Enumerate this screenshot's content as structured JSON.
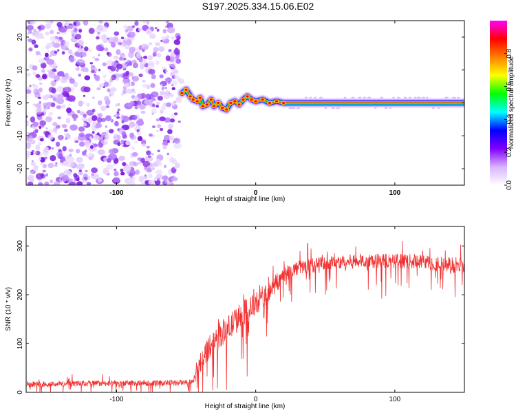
{
  "title": "S197.2025.334.15.06.E02",
  "chart_data": [
    {
      "type": "heatmap",
      "name": "spectrogram",
      "xlabel": "Height of straight line (km)",
      "ylabel": "Frequency (Hz)",
      "xlim": [
        -165,
        150
      ],
      "ylim": [
        -25,
        25
      ],
      "xticks": [
        -100,
        0,
        100
      ],
      "yticks": [
        -20,
        -10,
        0,
        10,
        20
      ],
      "xtick_labels": [
        "-100",
        "0",
        "100"
      ],
      "ytick_labels": [
        "-20",
        "-10",
        "0",
        "10",
        "20"
      ],
      "noise_region_x": [
        -165,
        -55
      ],
      "signal_track": {
        "points": [
          [
            -53,
            3
          ],
          [
            -50,
            4
          ],
          [
            -47,
            2
          ],
          [
            -45,
            1
          ],
          [
            -42,
            0.5
          ],
          [
            -40,
            1.5
          ],
          [
            -38,
            -1
          ],
          [
            -35,
            -0.5
          ],
          [
            -32,
            1
          ],
          [
            -30,
            -1
          ],
          [
            -27,
            0
          ],
          [
            -24,
            -1.5
          ],
          [
            -21,
            -2
          ],
          [
            -18,
            0
          ],
          [
            -15,
            0.5
          ],
          [
            -12,
            -0.5
          ],
          [
            -9,
            1
          ],
          [
            -6,
            2
          ],
          [
            -3,
            1
          ],
          [
            0,
            0.5
          ],
          [
            5,
            1
          ],
          [
            10,
            0
          ],
          [
            15,
            0.5
          ],
          [
            20,
            0
          ],
          [
            25,
            0
          ],
          [
            150,
            0
          ]
        ],
        "steady_from_x": 25,
        "steady_frequency": 0
      },
      "colorbar": {
        "label": "Normalized spectral amplitude",
        "range": [
          0,
          1
        ],
        "ticks": [
          0,
          0.2,
          0.4,
          0.6,
          0.8
        ],
        "tick_labels": [
          "0.0",
          "0.2",
          "0.4",
          "0.6",
          "0.8"
        ],
        "colors": [
          "#ffffff",
          "#d9b3ff",
          "#8000ff",
          "#0000ff",
          "#00ffff",
          "#00ff00",
          "#ffff00",
          "#ff8000",
          "#ff0000",
          "#ff00ff"
        ]
      }
    },
    {
      "type": "line",
      "name": "snr",
      "xlabel": "Height of straight line (km)",
      "ylabel": "SNR (10 * v/v)",
      "xlim": [
        -165,
        150
      ],
      "ylim": [
        0,
        340
      ],
      "xticks": [
        -100,
        0,
        100
      ],
      "yticks": [
        0,
        100,
        200,
        300
      ],
      "xtick_labels": [
        "-100",
        "0",
        "100"
      ],
      "ytick_labels": [
        "0",
        "100",
        "200",
        "300"
      ],
      "line_color": "#f03030",
      "trend_x": [
        -165,
        -45,
        -40,
        -30,
        -20,
        -10,
        0,
        10,
        20,
        30,
        50,
        80,
        100,
        120,
        140,
        150
      ],
      "trend_mean": [
        17,
        20,
        60,
        110,
        130,
        160,
        180,
        210,
        240,
        255,
        265,
        270,
        270,
        268,
        260,
        262
      ],
      "trend_spread": [
        12,
        12,
        45,
        50,
        55,
        55,
        50,
        45,
        35,
        30,
        30,
        30,
        30,
        30,
        35,
        35
      ]
    }
  ]
}
